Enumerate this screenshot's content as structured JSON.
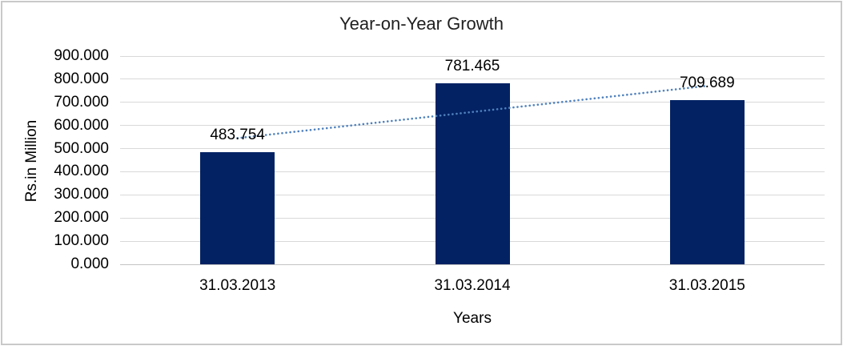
{
  "frame": {
    "background": "#ffffff",
    "border_color": "#c9c9c9"
  },
  "chart_data": {
    "type": "bar",
    "title": "Year-on-Year Growth",
    "categories": [
      "31.03.2013",
      "31.03.2014",
      "31.03.2015"
    ],
    "values": [
      483.754,
      781.465,
      709.689
    ],
    "data_labels": [
      "483.754",
      "781.465",
      "709.689"
    ],
    "xlabel": "Years",
    "ylabel": "Rs.in Million",
    "ylim": [
      0,
      900
    ],
    "ytick_step": 100,
    "ytick_labels": [
      "0.000",
      "100.000",
      "200.000",
      "300.000",
      "400.000",
      "500.000",
      "600.000",
      "700.000",
      "800.000",
      "900.000"
    ],
    "grid": true,
    "legend_position": "none",
    "bar_color": "#032264",
    "gridline_color": "#d9d9d9",
    "baseline_color": "#c3c3c3",
    "text_color": "#000000",
    "trendline": {
      "type": "linear",
      "style": "dotted",
      "color": "#4f81bd"
    }
  }
}
